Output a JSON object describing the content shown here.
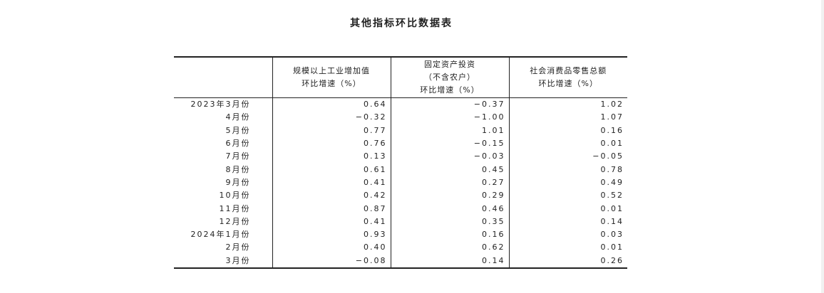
{
  "title": "其他指标环比数据表",
  "table": {
    "headers": [
      {
        "lines": [
          ""
        ]
      },
      {
        "lines": [
          "规模以上工业增加值",
          "环比增速（%）"
        ]
      },
      {
        "lines": [
          "固定资产投资",
          "（不含农户）",
          "环比增速（%）"
        ]
      },
      {
        "lines": [
          "社会消费品零售总额",
          "环比增速（%）"
        ]
      }
    ],
    "rows": [
      {
        "label": "2023年3月份",
        "values": [
          "0.64",
          "−0.37",
          "1.02"
        ]
      },
      {
        "label": "4月份",
        "values": [
          "−0.32",
          "−1.00",
          "1.07"
        ]
      },
      {
        "label": "5月份",
        "values": [
          "0.77",
          "1.01",
          "0.16"
        ]
      },
      {
        "label": "6月份",
        "values": [
          "0.76",
          "−0.15",
          "0.01"
        ]
      },
      {
        "label": "7月份",
        "values": [
          "0.13",
          "−0.03",
          "−0.05"
        ]
      },
      {
        "label": "8月份",
        "values": [
          "0.61",
          "0.45",
          "0.78"
        ]
      },
      {
        "label": "9月份",
        "values": [
          "0.41",
          "0.27",
          "0.49"
        ]
      },
      {
        "label": "10月份",
        "values": [
          "0.42",
          "0.29",
          "0.52"
        ]
      },
      {
        "label": "11月份",
        "values": [
          "0.87",
          "0.46",
          "0.01"
        ]
      },
      {
        "label": "12月份",
        "values": [
          "0.41",
          "0.35",
          "0.14"
        ]
      },
      {
        "label": "2024年1月份",
        "values": [
          "0.93",
          "0.16",
          "0.03"
        ]
      },
      {
        "label": "2月份",
        "values": [
          "0.40",
          "0.62",
          "0.01"
        ]
      },
      {
        "label": "3月份",
        "values": [
          "−0.08",
          "0.14",
          "0.26"
        ]
      }
    ]
  }
}
